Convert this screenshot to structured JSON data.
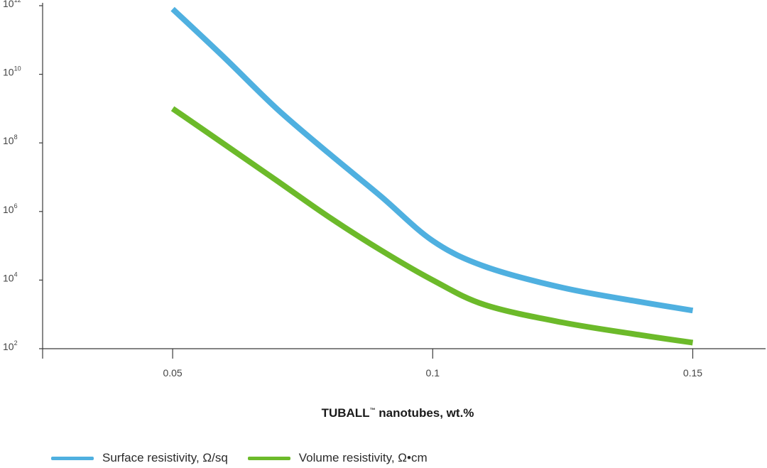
{
  "chart_data": {
    "type": "line",
    "xlabel": "TUBALL",
    "xlabel_mark": "™",
    "xlabel_suffix": " nanotubes, wt.%",
    "x_ticks": [
      "0.05",
      "0.1",
      "0.15"
    ],
    "x_tick_values": [
      0.05,
      0.1,
      0.15
    ],
    "xlim": [
      0.025,
      0.164
    ],
    "y_scale": "log",
    "ylim": [
      100,
      1000000000000
    ],
    "y_ticks": [
      {
        "base": "10",
        "exp": "12",
        "value": 1000000000000
      },
      {
        "base": "10",
        "exp": "10",
        "value": 10000000000
      },
      {
        "base": "10",
        "exp": "8",
        "value": 100000000
      },
      {
        "base": "10",
        "exp": "6",
        "value": 1000000
      },
      {
        "base": "10",
        "exp": "4",
        "value": 10000
      },
      {
        "base": "10",
        "exp": "2",
        "value": 100
      }
    ],
    "grid": false,
    "legend_position": "bottom-left",
    "series": [
      {
        "name": "Surface resistivity, Ω/sq",
        "color": "#4fb0e0",
        "x": [
          0.05,
          0.06,
          0.07,
          0.08,
          0.09,
          0.1,
          0.11,
          0.125,
          0.14,
          0.15
        ],
        "y": [
          800000000000,
          30000000000,
          1000000000,
          50000000,
          2800000,
          140000,
          25000,
          6000,
          2300,
          1300
        ]
      },
      {
        "name": "Volume resistivity, Ω•cm",
        "color": "#6cba2a",
        "x": [
          0.05,
          0.06,
          0.07,
          0.08,
          0.09,
          0.1,
          0.11,
          0.125,
          0.14,
          0.15
        ],
        "y": [
          1000000000,
          90000000,
          8000000,
          700000,
          75000,
          10000,
          1900,
          580,
          250,
          150
        ]
      }
    ]
  }
}
